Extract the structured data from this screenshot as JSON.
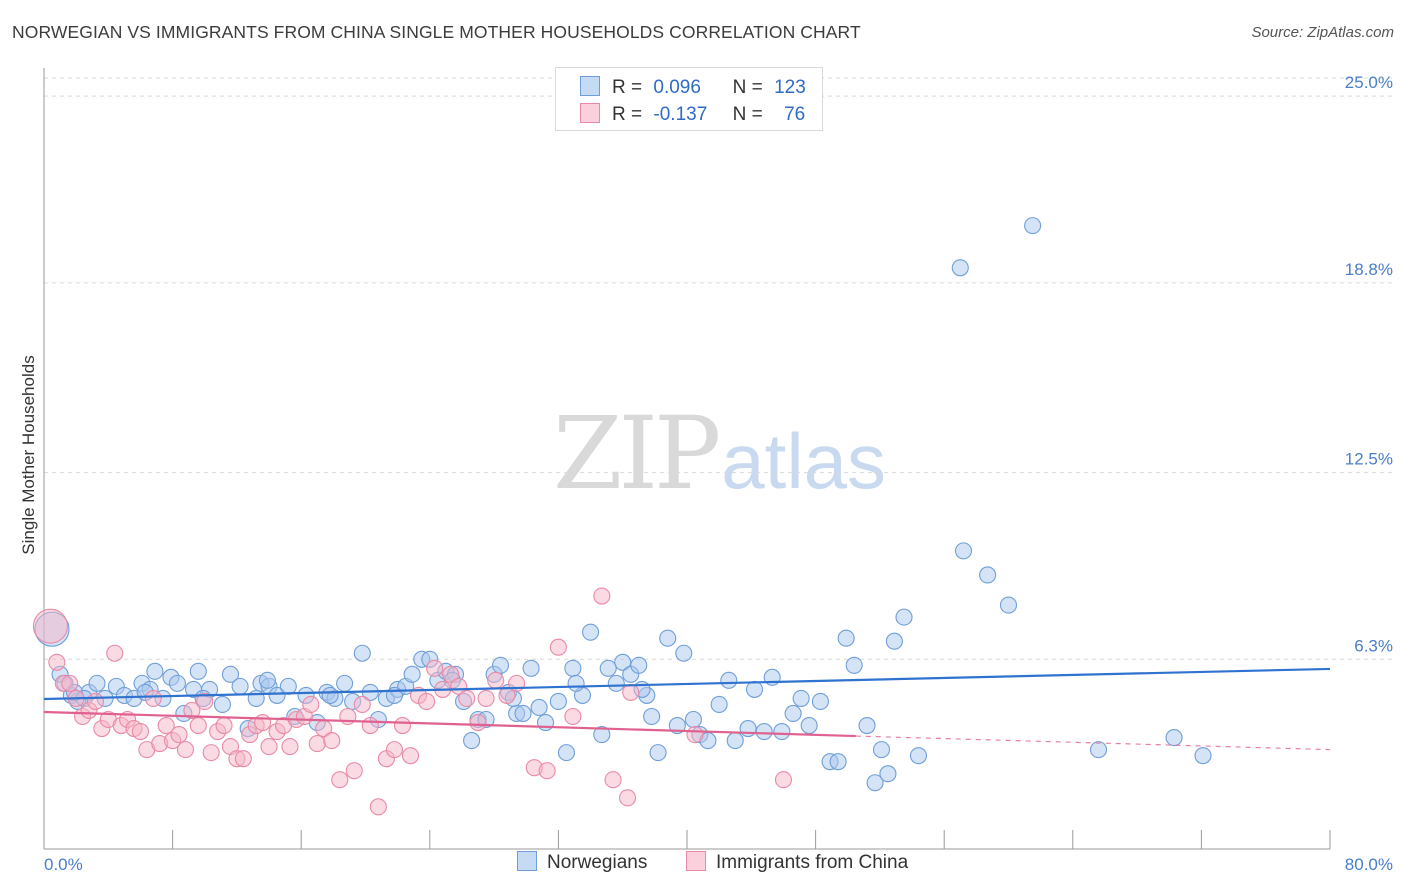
{
  "title": "NORWEGIAN VS IMMIGRANTS FROM CHINA SINGLE MOTHER HOUSEHOLDS CORRELATION CHART",
  "source": "Source: ZipAtlas.com",
  "watermark": {
    "zip": "ZIP",
    "atlas": "atlas"
  },
  "legend_top": {
    "rows": [
      {
        "r_label": "R =",
        "r_value": "0.096",
        "n_label": "N =",
        "n_value": "123"
      },
      {
        "r_label": "R =",
        "r_value": "-0.137",
        "n_label": "N =",
        "n_value": "76"
      }
    ]
  },
  "legend_bottom": {
    "series0": "Norwegians",
    "series1": "Immigrants from China"
  },
  "colors": {
    "blue_fill": "#a9c8ee",
    "blue_stroke": "#6f9fd8",
    "blue_line": "#2f72d0",
    "pink_fill": "#f5b6c8",
    "pink_stroke": "#e98aa6",
    "pink_line": "#e0608f",
    "grid": "#d9d9d9",
    "axis": "#999999",
    "tick_text": "#4a7ec8"
  },
  "chart_data": {
    "type": "scatter",
    "title": "NORWEGIAN VS IMMIGRANTS FROM CHINA SINGLE MOTHER HOUSEHOLDS CORRELATION CHART",
    "xlabel": "",
    "ylabel": "Single Mother Households",
    "xlim": [
      0,
      80
    ],
    "ylim": [
      0,
      26.2
    ],
    "x_tick_labels": [
      "0.0%",
      "80.0%"
    ],
    "y_ticks": [
      6.3,
      12.5,
      18.8,
      25.0
    ],
    "y_tick_labels": [
      "6.3%",
      "12.5%",
      "18.8%",
      "25.0%"
    ],
    "grid": "horizontal dashed",
    "legend_position": "top-center",
    "series": [
      {
        "name": "Norwegians",
        "r": 0.096,
        "n": 123,
        "trend": {
          "x0": 0,
          "y0": 4.98,
          "x1": 80,
          "y1": 5.98,
          "style": "solid"
        },
        "points": [
          [
            0.5,
            7.3
          ],
          [
            1.0,
            5.8
          ],
          [
            1.3,
            5.5
          ],
          [
            1.7,
            5.1
          ],
          [
            2.1,
            4.9
          ],
          [
            2.8,
            5.2
          ],
          [
            3.3,
            5.5
          ],
          [
            3.8,
            5.0
          ],
          [
            4.5,
            5.4
          ],
          [
            5.0,
            5.1
          ],
          [
            5.6,
            5.0
          ],
          [
            6.1,
            5.5
          ],
          [
            6.6,
            5.3
          ],
          [
            6.9,
            5.9
          ],
          [
            7.4,
            5.0
          ],
          [
            7.9,
            5.7
          ],
          [
            8.3,
            5.5
          ],
          [
            8.7,
            4.5
          ],
          [
            9.3,
            5.3
          ],
          [
            9.6,
            5.9
          ],
          [
            10.3,
            5.3
          ],
          [
            11.1,
            4.8
          ],
          [
            11.6,
            5.8
          ],
          [
            12.2,
            5.4
          ],
          [
            12.7,
            4.0
          ],
          [
            13.2,
            5.0
          ],
          [
            13.5,
            5.5
          ],
          [
            14.0,
            5.4
          ],
          [
            14.5,
            5.1
          ],
          [
            15.2,
            5.4
          ],
          [
            15.6,
            4.4
          ],
          [
            16.3,
            5.1
          ],
          [
            17.0,
            4.2
          ],
          [
            17.6,
            5.2
          ],
          [
            18.1,
            5.0
          ],
          [
            18.7,
            5.5
          ],
          [
            19.2,
            4.9
          ],
          [
            19.8,
            6.5
          ],
          [
            20.3,
            5.2
          ],
          [
            20.8,
            4.3
          ],
          [
            21.3,
            5.0
          ],
          [
            22.0,
            5.3
          ],
          [
            22.5,
            5.4
          ],
          [
            22.9,
            5.8
          ],
          [
            23.5,
            6.3
          ],
          [
            24.0,
            6.3
          ],
          [
            24.5,
            5.6
          ],
          [
            25.0,
            5.9
          ],
          [
            25.6,
            5.8
          ],
          [
            26.1,
            4.9
          ],
          [
            26.6,
            3.6
          ],
          [
            27.0,
            4.3
          ],
          [
            27.5,
            4.3
          ],
          [
            28.0,
            5.8
          ],
          [
            28.4,
            6.1
          ],
          [
            28.9,
            5.2
          ],
          [
            29.4,
            4.5
          ],
          [
            29.8,
            4.5
          ],
          [
            30.3,
            6.0
          ],
          [
            30.8,
            4.7
          ],
          [
            31.2,
            4.2
          ],
          [
            32.0,
            4.9
          ],
          [
            32.5,
            3.2
          ],
          [
            32.9,
            6.0
          ],
          [
            33.5,
            5.1
          ],
          [
            34.0,
            7.2
          ],
          [
            34.7,
            3.8
          ],
          [
            35.1,
            6.0
          ],
          [
            35.6,
            5.5
          ],
          [
            36.0,
            6.2
          ],
          [
            36.5,
            5.8
          ],
          [
            37.0,
            6.1
          ],
          [
            37.5,
            5.1
          ],
          [
            37.8,
            4.4
          ],
          [
            38.2,
            3.2
          ],
          [
            38.8,
            7.0
          ],
          [
            39.4,
            4.1
          ],
          [
            39.8,
            6.5
          ],
          [
            40.4,
            4.3
          ],
          [
            40.8,
            3.8
          ],
          [
            41.3,
            3.6
          ],
          [
            42.0,
            4.8
          ],
          [
            42.6,
            5.6
          ],
          [
            43.0,
            3.6
          ],
          [
            43.8,
            4.0
          ],
          [
            44.2,
            5.3
          ],
          [
            44.8,
            3.9
          ],
          [
            45.3,
            5.7
          ],
          [
            45.9,
            3.9
          ],
          [
            46.6,
            4.5
          ],
          [
            47.1,
            5.0
          ],
          [
            47.6,
            4.1
          ],
          [
            48.3,
            4.9
          ],
          [
            48.9,
            2.9
          ],
          [
            49.4,
            2.9
          ],
          [
            49.9,
            7.0
          ],
          [
            50.4,
            6.1
          ],
          [
            51.2,
            4.1
          ],
          [
            51.7,
            2.2
          ],
          [
            52.1,
            3.3
          ],
          [
            52.5,
            2.5
          ],
          [
            52.9,
            6.9
          ],
          [
            53.5,
            7.7
          ],
          [
            54.4,
            3.1
          ],
          [
            57.2,
            9.9
          ],
          [
            58.7,
            9.1
          ],
          [
            60.0,
            8.1
          ],
          [
            61.5,
            20.7
          ],
          [
            65.6,
            3.3
          ],
          [
            70.3,
            3.7
          ],
          [
            72.1,
            3.1
          ],
          [
            1.9,
            5.2
          ],
          [
            2.5,
            5.0
          ],
          [
            6.3,
            5.2
          ],
          [
            9.9,
            5.0
          ],
          [
            13.9,
            5.6
          ],
          [
            17.8,
            5.1
          ],
          [
            21.8,
            5.1
          ],
          [
            25.4,
            5.6
          ],
          [
            29.2,
            5.0
          ],
          [
            33.1,
            5.5
          ],
          [
            37.2,
            5.3
          ],
          [
            57.0,
            19.3
          ]
        ]
      },
      {
        "name": "Immigrants from China",
        "r": -0.137,
        "n": 76,
        "trend": {
          "x0": 0,
          "y0": 4.55,
          "x1": 50.5,
          "y1": 3.75,
          "style": "solid",
          "dashed_to": {
            "x": 80,
            "y": 3.3
          }
        },
        "points": [
          [
            0.4,
            7.4
          ],
          [
            0.8,
            6.2
          ],
          [
            1.2,
            5.5
          ],
          [
            1.6,
            5.5
          ],
          [
            2.0,
            5.0
          ],
          [
            2.4,
            4.4
          ],
          [
            2.8,
            4.6
          ],
          [
            3.2,
            4.9
          ],
          [
            3.6,
            4.0
          ],
          [
            4.0,
            4.3
          ],
          [
            4.4,
            6.5
          ],
          [
            4.8,
            4.1
          ],
          [
            5.2,
            4.3
          ],
          [
            5.6,
            4.0
          ],
          [
            6.0,
            3.9
          ],
          [
            6.4,
            3.3
          ],
          [
            6.8,
            5.0
          ],
          [
            7.2,
            3.5
          ],
          [
            7.6,
            4.1
          ],
          [
            8.0,
            3.6
          ],
          [
            8.4,
            3.8
          ],
          [
            8.8,
            3.3
          ],
          [
            9.2,
            4.6
          ],
          [
            9.6,
            4.1
          ],
          [
            10.0,
            4.9
          ],
          [
            10.4,
            3.2
          ],
          [
            10.8,
            3.9
          ],
          [
            11.2,
            4.1
          ],
          [
            11.6,
            3.4
          ],
          [
            12.0,
            3.0
          ],
          [
            12.4,
            3.0
          ],
          [
            12.8,
            3.8
          ],
          [
            13.2,
            4.1
          ],
          [
            13.6,
            4.2
          ],
          [
            14.0,
            3.4
          ],
          [
            14.5,
            3.9
          ],
          [
            14.9,
            4.1
          ],
          [
            15.3,
            3.4
          ],
          [
            15.7,
            4.3
          ],
          [
            16.2,
            4.4
          ],
          [
            16.6,
            4.8
          ],
          [
            17.0,
            3.5
          ],
          [
            17.4,
            4.0
          ],
          [
            17.9,
            3.6
          ],
          [
            18.4,
            2.3
          ],
          [
            18.9,
            4.4
          ],
          [
            19.3,
            2.6
          ],
          [
            19.8,
            4.8
          ],
          [
            20.3,
            4.1
          ],
          [
            20.8,
            1.4
          ],
          [
            21.3,
            3.0
          ],
          [
            21.8,
            3.3
          ],
          [
            22.3,
            4.1
          ],
          [
            22.8,
            3.1
          ],
          [
            23.3,
            5.1
          ],
          [
            23.8,
            4.9
          ],
          [
            24.3,
            6.0
          ],
          [
            24.8,
            5.3
          ],
          [
            25.3,
            5.8
          ],
          [
            25.8,
            5.4
          ],
          [
            26.3,
            5.0
          ],
          [
            27.0,
            4.2
          ],
          [
            27.5,
            5.0
          ],
          [
            28.1,
            5.6
          ],
          [
            28.8,
            5.1
          ],
          [
            29.4,
            5.5
          ],
          [
            30.5,
            2.7
          ],
          [
            31.3,
            2.6
          ],
          [
            32.0,
            6.7
          ],
          [
            32.9,
            4.4
          ],
          [
            34.7,
            8.4
          ],
          [
            35.4,
            2.3
          ],
          [
            36.3,
            1.7
          ],
          [
            36.5,
            5.2
          ],
          [
            40.5,
            3.8
          ],
          [
            46.0,
            2.3
          ]
        ]
      }
    ]
  }
}
